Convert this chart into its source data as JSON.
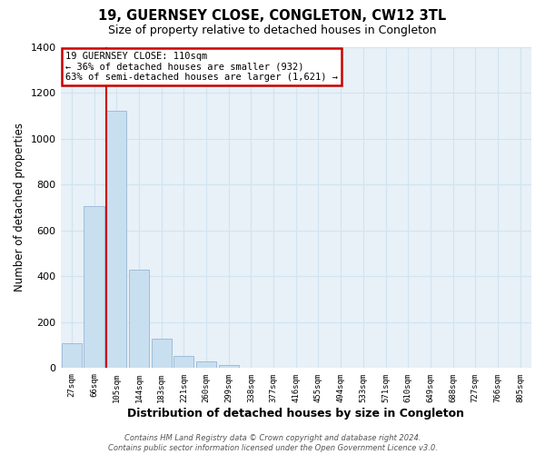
{
  "title": "19, GUERNSEY CLOSE, CONGLETON, CW12 3TL",
  "subtitle": "Size of property relative to detached houses in Congleton",
  "xlabel": "Distribution of detached houses by size in Congleton",
  "ylabel": "Number of detached properties",
  "bar_labels": [
    "27sqm",
    "66sqm",
    "105sqm",
    "144sqm",
    "183sqm",
    "221sqm",
    "260sqm",
    "299sqm",
    "338sqm",
    "377sqm",
    "416sqm",
    "455sqm",
    "494sqm",
    "533sqm",
    "571sqm",
    "610sqm",
    "649sqm",
    "688sqm",
    "727sqm",
    "766sqm",
    "805sqm"
  ],
  "bar_values": [
    110,
    705,
    1120,
    430,
    130,
    55,
    30,
    15,
    0,
    0,
    0,
    0,
    0,
    0,
    0,
    0,
    0,
    0,
    0,
    0,
    0
  ],
  "bar_color": "#c8dff0",
  "bar_edge_color": "#a0bcd8",
  "vline_index": 2,
  "vline_color": "#cc0000",
  "ylim": [
    0,
    1400
  ],
  "yticks": [
    0,
    200,
    400,
    600,
    800,
    1000,
    1200,
    1400
  ],
  "annotation_line1": "19 GUERNSEY CLOSE: 110sqm",
  "annotation_line2": "← 36% of detached houses are smaller (932)",
  "annotation_line3": "63% of semi-detached houses are larger (1,621) →",
  "annotation_box_color": "#ffffff",
  "annotation_box_edge": "#cc0000",
  "footer_line1": "Contains HM Land Registry data © Crown copyright and database right 2024.",
  "footer_line2": "Contains public sector information licensed under the Open Government Licence v3.0.",
  "grid_color": "#d0e4f0",
  "plot_bg_color": "#e8f0f8",
  "background_color": "#ffffff"
}
